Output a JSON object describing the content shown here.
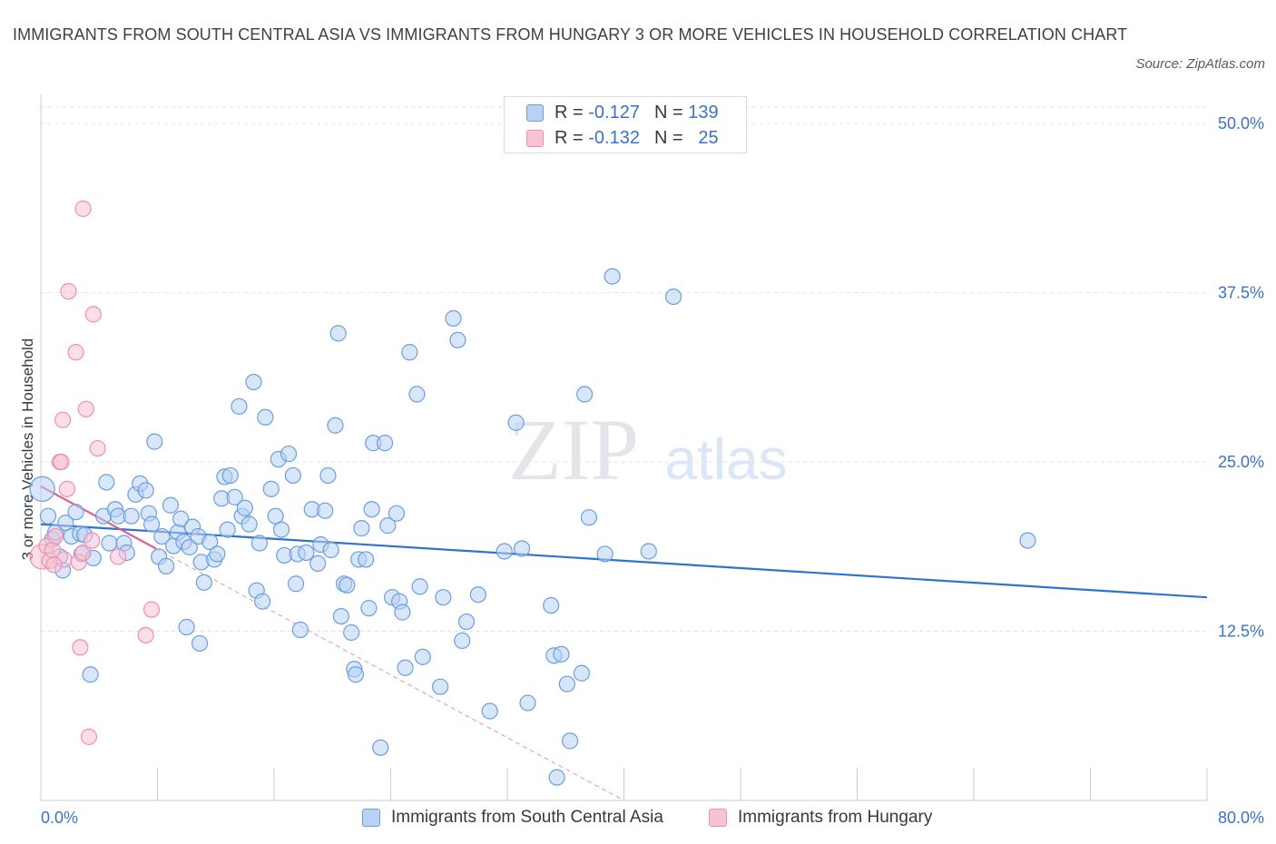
{
  "title": "IMMIGRANTS FROM SOUTH CENTRAL ASIA VS IMMIGRANTS FROM HUNGARY 3 OR MORE VEHICLES IN HOUSEHOLD CORRELATION CHART",
  "source": "Source: ZipAtlas.com",
  "watermark": {
    "zip": "ZIP",
    "atlas": "atlas"
  },
  "legend": {
    "series_a": {
      "r_label": "R =",
      "r_value": "-0.127",
      "n_label": "N =",
      "n_value": "139"
    },
    "series_b": {
      "r_label": "R =",
      "r_value": "-0.132",
      "n_label": "N =",
      "n_value": "25"
    }
  },
  "colors": {
    "blue_fill": "#b8d1f5",
    "blue_stroke": "#6b9ee0",
    "blue_line": "#2f72d0",
    "pink_fill": "#f7c3d4",
    "pink_stroke": "#ee8fae",
    "pink_line": "#e2608e",
    "axis_text": "#3a72c8",
    "grid": "#dfe2e8"
  },
  "chart_data": {
    "type": "scatter",
    "title": "IMMIGRANTS FROM SOUTH CENTRAL ASIA VS IMMIGRANTS FROM HUNGARY 3 OR MORE VEHICLES IN HOUSEHOLD CORRELATION CHART",
    "xlabel": "",
    "ylabel": "3 or more Vehicles in Household",
    "xlim": [
      0,
      80
    ],
    "ylim": [
      0,
      50
    ],
    "x_tick_labels": [
      "0.0%",
      "80.0%"
    ],
    "y_ticks": [
      12.5,
      25.0,
      37.5,
      50.0
    ],
    "y_tick_labels": [
      "12.5%",
      "25.0%",
      "37.5%",
      "50.0%"
    ],
    "grid": true,
    "legend_position": "bottom",
    "series": [
      {
        "name": "Immigrants from South Central Asia",
        "color": "#6b9ee0",
        "trend": {
          "x": [
            0,
            80
          ],
          "y": [
            20.4,
            15.0
          ]
        },
        "points": [
          [
            0.1,
            23.0,
            1.6
          ],
          [
            0.5,
            21.0,
            1.0
          ],
          [
            0.8,
            19.3,
            1.0
          ],
          [
            1.0,
            19.8,
            1.0
          ],
          [
            1.3,
            18.0,
            1.0
          ],
          [
            1.5,
            17.0,
            1.0
          ],
          [
            1.7,
            20.5,
            1.0
          ],
          [
            2.1,
            19.5,
            1.0
          ],
          [
            2.4,
            21.3,
            1.0
          ],
          [
            2.7,
            19.7,
            1.0
          ],
          [
            3.0,
            19.6,
            1.0
          ],
          [
            2.8,
            18.2,
            1.0
          ],
          [
            3.6,
            17.9,
            1.0
          ],
          [
            3.4,
            9.3,
            1.0
          ],
          [
            4.3,
            21.0,
            1.0
          ],
          [
            4.5,
            23.5,
            1.0
          ],
          [
            4.7,
            19.0,
            1.0
          ],
          [
            5.1,
            21.5,
            1.0
          ],
          [
            5.3,
            21.0,
            1.0
          ],
          [
            5.7,
            19.0,
            1.0
          ],
          [
            5.9,
            18.3,
            1.0
          ],
          [
            6.2,
            21.0,
            1.0
          ],
          [
            6.5,
            22.6,
            1.0
          ],
          [
            6.8,
            23.4,
            1.0
          ],
          [
            7.2,
            22.9,
            1.0
          ],
          [
            7.4,
            21.2,
            1.0
          ],
          [
            7.6,
            20.4,
            1.0
          ],
          [
            7.8,
            26.5,
            1.0
          ],
          [
            8.1,
            18.0,
            1.0
          ],
          [
            8.3,
            19.5,
            1.0
          ],
          [
            8.6,
            17.3,
            1.0
          ],
          [
            8.9,
            21.8,
            1.0
          ],
          [
            9.1,
            18.8,
            1.0
          ],
          [
            9.4,
            19.8,
            1.0
          ],
          [
            9.6,
            20.8,
            1.0
          ],
          [
            9.8,
            19.1,
            1.0
          ],
          [
            10.2,
            18.7,
            1.0
          ],
          [
            10.4,
            20.2,
            1.0
          ],
          [
            10.0,
            12.8,
            1.0
          ],
          [
            10.8,
            19.5,
            1.0
          ],
          [
            11.0,
            17.6,
            1.0
          ],
          [
            11.2,
            16.1,
            1.0
          ],
          [
            10.9,
            11.6,
            1.0
          ],
          [
            11.6,
            19.1,
            1.0
          ],
          [
            11.9,
            17.8,
            1.0
          ],
          [
            12.1,
            18.2,
            1.0
          ],
          [
            12.4,
            22.3,
            1.0
          ],
          [
            12.6,
            23.9,
            1.0
          ],
          [
            12.8,
            20.0,
            1.0
          ],
          [
            13.0,
            24.0,
            1.0
          ],
          [
            13.3,
            22.4,
            1.0
          ],
          [
            13.6,
            29.1,
            1.0
          ],
          [
            13.8,
            21.0,
            1.0
          ],
          [
            14.0,
            21.6,
            1.0
          ],
          [
            14.3,
            20.4,
            1.0
          ],
          [
            14.6,
            30.9,
            1.0
          ],
          [
            14.8,
            15.5,
            1.0
          ],
          [
            15.2,
            14.7,
            1.0
          ],
          [
            15.0,
            19.0,
            1.0
          ],
          [
            15.4,
            28.3,
            1.0
          ],
          [
            15.8,
            23.0,
            1.0
          ],
          [
            16.1,
            21.0,
            1.0
          ],
          [
            16.3,
            25.2,
            1.0
          ],
          [
            16.5,
            20.0,
            1.0
          ],
          [
            16.7,
            18.1,
            1.0
          ],
          [
            17.0,
            25.6,
            1.0
          ],
          [
            17.3,
            24.0,
            1.0
          ],
          [
            17.5,
            16.0,
            1.0
          ],
          [
            17.6,
            18.2,
            1.0
          ],
          [
            17.8,
            12.6,
            1.0
          ],
          [
            18.2,
            18.3,
            1.0
          ],
          [
            18.6,
            21.5,
            1.0
          ],
          [
            19.0,
            17.5,
            1.0
          ],
          [
            19.2,
            18.9,
            1.0
          ],
          [
            19.5,
            21.4,
            1.0
          ],
          [
            19.7,
            24.0,
            1.0
          ],
          [
            19.9,
            18.5,
            1.0
          ],
          [
            20.2,
            27.7,
            1.0
          ],
          [
            20.4,
            34.5,
            1.0
          ],
          [
            20.6,
            13.6,
            1.0
          ],
          [
            20.8,
            16.0,
            1.0
          ],
          [
            21.0,
            15.9,
            1.0
          ],
          [
            21.3,
            12.4,
            1.0
          ],
          [
            21.5,
            9.7,
            1.0
          ],
          [
            21.6,
            9.3,
            1.0
          ],
          [
            21.8,
            17.8,
            1.0
          ],
          [
            22.0,
            20.1,
            1.0
          ],
          [
            22.3,
            17.8,
            1.0
          ],
          [
            22.5,
            14.2,
            1.0
          ],
          [
            22.7,
            21.5,
            1.0
          ],
          [
            22.8,
            26.4,
            1.0
          ],
          [
            23.3,
            3.9,
            1.0
          ],
          [
            23.6,
            26.4,
            1.0
          ],
          [
            23.8,
            20.3,
            1.0
          ],
          [
            24.1,
            15.0,
            1.0
          ],
          [
            24.4,
            21.2,
            1.0
          ],
          [
            24.6,
            14.7,
            1.0
          ],
          [
            24.8,
            13.9,
            1.0
          ],
          [
            25.0,
            9.8,
            1.0
          ],
          [
            25.3,
            33.1,
            1.0
          ],
          [
            25.8,
            30.0,
            1.0
          ],
          [
            26.0,
            15.8,
            1.0
          ],
          [
            26.2,
            10.6,
            1.0
          ],
          [
            27.4,
            8.4,
            1.0
          ],
          [
            27.6,
            15.0,
            1.0
          ],
          [
            28.3,
            35.6,
            1.0
          ],
          [
            28.6,
            34.0,
            1.0
          ],
          [
            28.9,
            11.8,
            1.0
          ],
          [
            29.2,
            13.2,
            1.0
          ],
          [
            30.0,
            15.2,
            1.0
          ],
          [
            30.8,
            6.6,
            1.0
          ],
          [
            31.8,
            18.4,
            1.0
          ],
          [
            32.6,
            27.9,
            1.0
          ],
          [
            33.0,
            18.6,
            1.0
          ],
          [
            33.4,
            7.2,
            1.0
          ],
          [
            35.0,
            14.4,
            1.0
          ],
          [
            35.2,
            10.7,
            1.0
          ],
          [
            35.7,
            10.8,
            1.0
          ],
          [
            35.4,
            1.7,
            1.0
          ],
          [
            36.1,
            8.6,
            1.0
          ],
          [
            36.3,
            4.4,
            1.0
          ],
          [
            37.3,
            30.0,
            1.0
          ],
          [
            37.1,
            9.4,
            1.0
          ],
          [
            37.6,
            20.9,
            1.0
          ],
          [
            38.7,
            18.2,
            1.0
          ],
          [
            39.2,
            38.7,
            1.0
          ],
          [
            41.7,
            18.4,
            1.0
          ],
          [
            43.4,
            37.2,
            1.0
          ],
          [
            67.7,
            19.2,
            1.0
          ]
        ]
      },
      {
        "name": "Immigrants from Hungary",
        "color": "#ee8fae",
        "trend": {
          "x": [
            0,
            7.9
          ],
          "y": [
            23.2,
            18.6
          ]
        },
        "trend_extended": {
          "x": [
            7.9,
            40
          ],
          "y": [
            18.6,
            0
          ]
        },
        "points": [
          [
            0.1,
            18.0,
            1.6
          ],
          [
            0.4,
            18.8,
            1.0
          ],
          [
            0.6,
            17.7,
            1.0
          ],
          [
            0.8,
            18.5,
            1.0
          ],
          [
            1.0,
            19.5,
            1.0
          ],
          [
            1.3,
            25.0,
            1.0
          ],
          [
            1.4,
            25.0,
            1.0
          ],
          [
            1.5,
            28.1,
            1.0
          ],
          [
            1.6,
            17.8,
            1.0
          ],
          [
            1.8,
            23.0,
            1.0
          ],
          [
            1.9,
            37.6,
            1.0
          ],
          [
            2.4,
            33.1,
            1.0
          ],
          [
            2.6,
            17.6,
            1.0
          ],
          [
            2.7,
            11.3,
            1.0
          ],
          [
            2.9,
            43.7,
            1.0
          ],
          [
            3.1,
            28.9,
            1.0
          ],
          [
            3.3,
            4.7,
            1.0
          ],
          [
            3.6,
            35.9,
            1.0
          ],
          [
            3.9,
            26.0,
            1.0
          ],
          [
            2.9,
            18.3,
            1.0
          ],
          [
            5.3,
            18.0,
            1.0
          ],
          [
            7.6,
            14.1,
            1.0
          ],
          [
            7.2,
            12.2,
            1.0
          ],
          [
            3.5,
            19.2,
            1.0
          ],
          [
            0.9,
            17.4,
            1.0
          ]
        ]
      }
    ]
  },
  "bottom_legend": {
    "series_a_label": "Immigrants from South Central Asia",
    "series_b_label": "Immigrants from Hungary"
  },
  "axes": {
    "x_min_label": "0.0%",
    "x_max_label": "80.0%",
    "y_label": "3 or more Vehicles in Household",
    "y_ticks": [
      "12.5%",
      "25.0%",
      "37.5%",
      "50.0%"
    ]
  }
}
